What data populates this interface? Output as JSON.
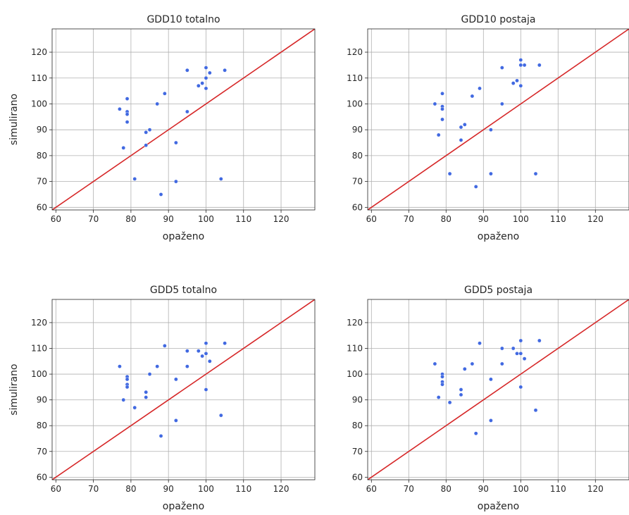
{
  "chart_data": [
    {
      "type": "scatter",
      "title": "GDD10 totalno",
      "xlabel": "opaženo",
      "ylabel": "simulirano",
      "xlim": [
        59,
        129
      ],
      "ylim": [
        59,
        129
      ],
      "xticks": [
        60,
        70,
        80,
        90,
        100,
        110,
        120
      ],
      "yticks": [
        60,
        70,
        80,
        90,
        100,
        110,
        120
      ],
      "grid": true,
      "reference_line": {
        "from": [
          59,
          59
        ],
        "to": [
          129,
          129
        ],
        "color": "#d62728"
      },
      "point_color": "#4169e1",
      "points": [
        [
          77,
          98
        ],
        [
          78,
          83
        ],
        [
          79,
          102
        ],
        [
          79,
          97
        ],
        [
          79,
          96
        ],
        [
          79,
          93
        ],
        [
          81,
          71
        ],
        [
          84,
          89
        ],
        [
          84,
          84
        ],
        [
          85,
          90
        ],
        [
          87,
          100
        ],
        [
          88,
          65
        ],
        [
          89,
          104
        ],
        [
          92,
          85
        ],
        [
          92,
          70
        ],
        [
          95,
          113
        ],
        [
          95,
          97
        ],
        [
          98,
          107
        ],
        [
          99,
          108
        ],
        [
          100,
          114
        ],
        [
          100,
          110
        ],
        [
          100,
          106
        ],
        [
          101,
          112
        ],
        [
          104,
          71
        ],
        [
          105,
          113
        ]
      ]
    },
    {
      "type": "scatter",
      "title": "GDD10 postaja",
      "xlabel": "opaženo",
      "ylabel": "",
      "xlim": [
        59,
        129
      ],
      "ylim": [
        59,
        129
      ],
      "xticks": [
        60,
        70,
        80,
        90,
        100,
        110,
        120
      ],
      "yticks": [
        60,
        70,
        80,
        90,
        100,
        110,
        120
      ],
      "grid": true,
      "reference_line": {
        "from": [
          59,
          59
        ],
        "to": [
          129,
          129
        ],
        "color": "#d62728"
      },
      "point_color": "#4169e1",
      "points": [
        [
          77,
          100
        ],
        [
          78,
          88
        ],
        [
          79,
          104
        ],
        [
          79,
          99
        ],
        [
          79,
          98
        ],
        [
          79,
          94
        ],
        [
          81,
          73
        ],
        [
          84,
          91
        ],
        [
          84,
          86
        ],
        [
          85,
          92
        ],
        [
          87,
          103
        ],
        [
          88,
          68
        ],
        [
          89,
          106
        ],
        [
          92,
          90
        ],
        [
          92,
          73
        ],
        [
          95,
          114
        ],
        [
          95,
          100
        ],
        [
          98,
          108
        ],
        [
          99,
          109
        ],
        [
          100,
          117
        ],
        [
          100,
          115
        ],
        [
          100,
          107
        ],
        [
          101,
          115
        ],
        [
          104,
          73
        ],
        [
          105,
          115
        ]
      ]
    },
    {
      "type": "scatter",
      "title": "GDD5 totalno",
      "xlabel": "opaženo",
      "ylabel": "simulirano",
      "xlim": [
        59,
        129
      ],
      "ylim": [
        59,
        129
      ],
      "xticks": [
        60,
        70,
        80,
        90,
        100,
        110,
        120
      ],
      "yticks": [
        60,
        70,
        80,
        90,
        100,
        110,
        120
      ],
      "grid": true,
      "reference_line": {
        "from": [
          59,
          59
        ],
        "to": [
          129,
          129
        ],
        "color": "#d62728"
      },
      "point_color": "#4169e1",
      "points": [
        [
          77,
          103
        ],
        [
          78,
          90
        ],
        [
          79,
          99
        ],
        [
          79,
          98
        ],
        [
          79,
          96
        ],
        [
          79,
          95
        ],
        [
          81,
          87
        ],
        [
          84,
          93
        ],
        [
          84,
          91
        ],
        [
          85,
          100
        ],
        [
          87,
          103
        ],
        [
          88,
          76
        ],
        [
          89,
          111
        ],
        [
          92,
          98
        ],
        [
          92,
          82
        ],
        [
          95,
          109
        ],
        [
          95,
          103
        ],
        [
          98,
          109
        ],
        [
          99,
          107
        ],
        [
          100,
          112
        ],
        [
          100,
          108
        ],
        [
          100,
          94
        ],
        [
          101,
          105
        ],
        [
          104,
          84
        ],
        [
          105,
          112
        ]
      ]
    },
    {
      "type": "scatter",
      "title": "GDD5 postaja",
      "xlabel": "opaženo",
      "ylabel": "",
      "xlim": [
        59,
        129
      ],
      "ylim": [
        59,
        129
      ],
      "xticks": [
        60,
        70,
        80,
        90,
        100,
        110,
        120
      ],
      "yticks": [
        60,
        70,
        80,
        90,
        100,
        110,
        120
      ],
      "grid": true,
      "reference_line": {
        "from": [
          59,
          59
        ],
        "to": [
          129,
          129
        ],
        "color": "#d62728"
      },
      "point_color": "#4169e1",
      "points": [
        [
          77,
          104
        ],
        [
          78,
          91
        ],
        [
          79,
          100
        ],
        [
          79,
          99
        ],
        [
          79,
          97
        ],
        [
          79,
          96
        ],
        [
          81,
          89
        ],
        [
          84,
          94
        ],
        [
          84,
          92
        ],
        [
          85,
          102
        ],
        [
          87,
          104
        ],
        [
          88,
          77
        ],
        [
          89,
          112
        ],
        [
          92,
          98
        ],
        [
          92,
          82
        ],
        [
          95,
          110
        ],
        [
          95,
          104
        ],
        [
          98,
          110
        ],
        [
          99,
          108
        ],
        [
          100,
          113
        ],
        [
          100,
          108
        ],
        [
          100,
          95
        ],
        [
          101,
          106
        ],
        [
          104,
          86
        ],
        [
          105,
          113
        ]
      ]
    }
  ]
}
